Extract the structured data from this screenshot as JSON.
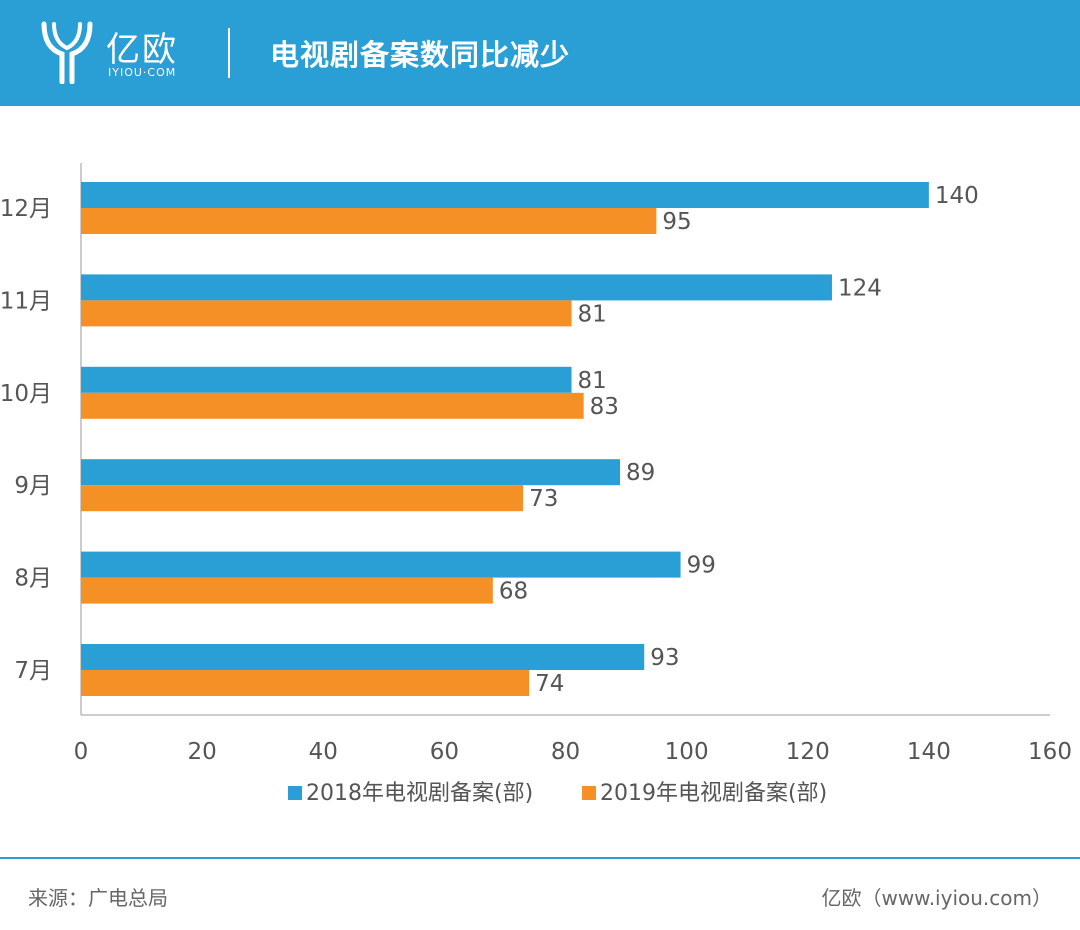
{
  "header": {
    "logo_name": "亿欧",
    "logo_domain": "IYIOU·COM",
    "title": "电视剧备案数同比减少"
  },
  "colors": {
    "header_bg": "#2a9fd6",
    "series_2018": "#2a9fd6",
    "series_2019": "#f59027"
  },
  "chart_data": {
    "type": "bar",
    "orientation": "horizontal",
    "categories": [
      "12月",
      "11月",
      "10月",
      "9月",
      "8月",
      "7月"
    ],
    "series": [
      {
        "name": "2018年电视剧备案(部)",
        "values": [
          140,
          124,
          81,
          89,
          99,
          93
        ]
      },
      {
        "name": "2019年电视剧备案(部)",
        "values": [
          95,
          81,
          83,
          73,
          68,
          74
        ]
      }
    ],
    "xlim": [
      0,
      160
    ],
    "xticks": [
      "0",
      "20",
      "40",
      "60",
      "80",
      "100",
      "120",
      "140",
      "160"
    ],
    "legend_position": "bottom-center",
    "grid": false
  },
  "footer": {
    "source": "来源：广电总局",
    "brand": "亿欧（www.iyiou.com）"
  }
}
